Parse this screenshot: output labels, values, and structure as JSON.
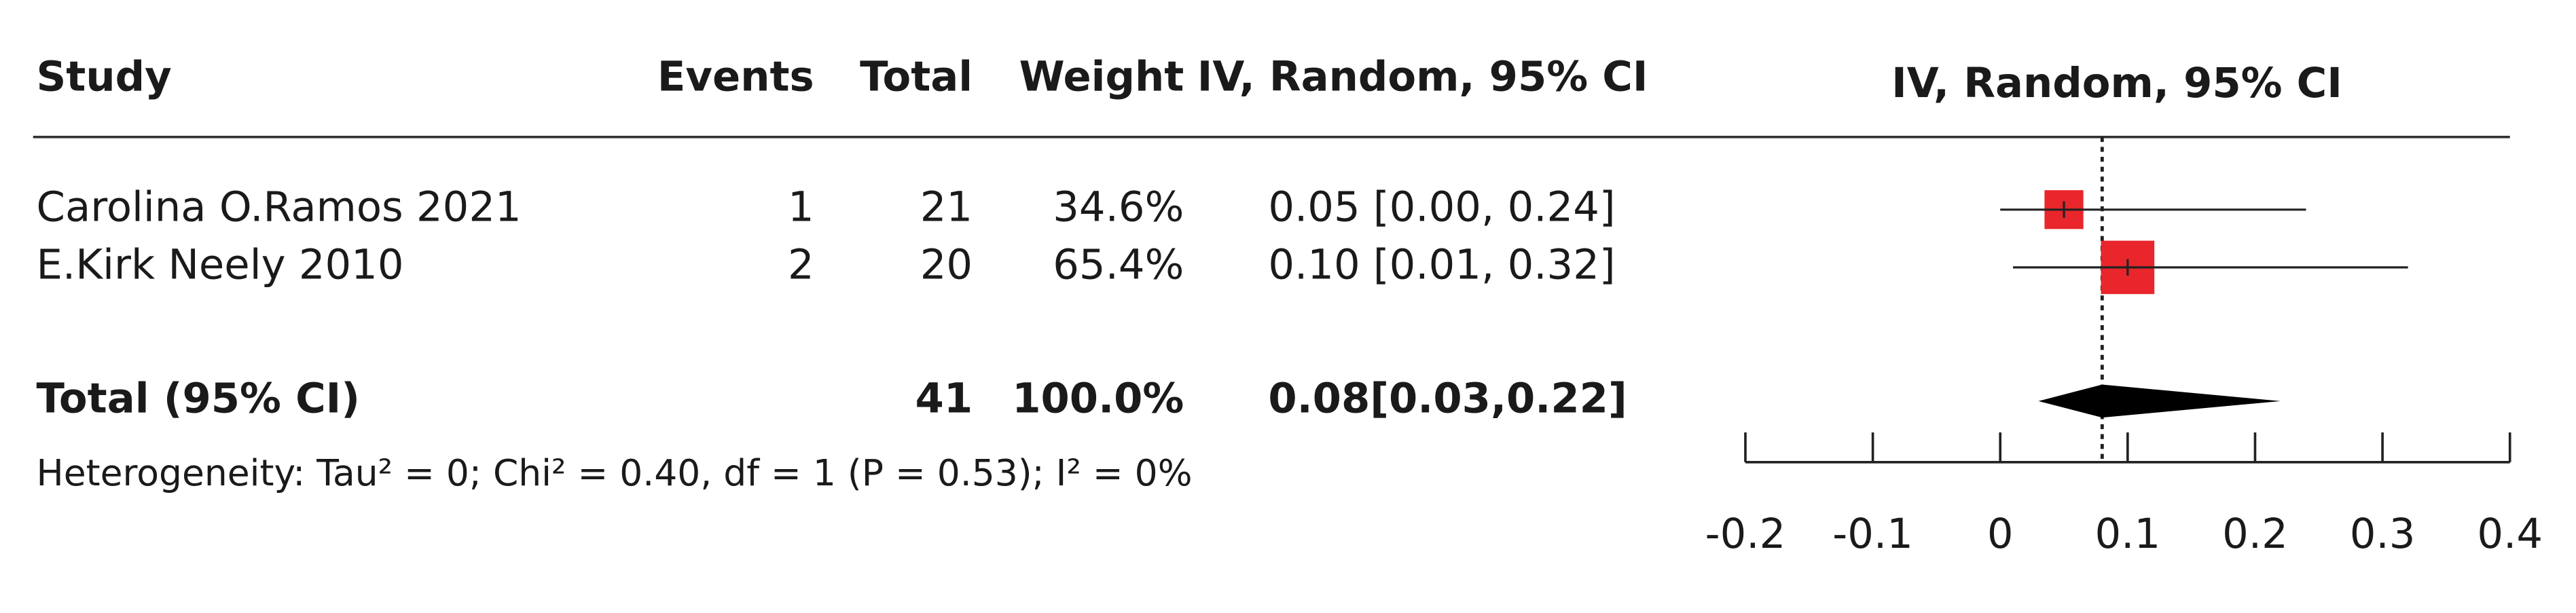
{
  "chart_data": {
    "type": "forest",
    "columns": [
      "Study",
      "Events",
      "Total",
      "Weight",
      "IV, Random, 95% CI"
    ],
    "plot_header": "IV, Random, 95% CI",
    "studies": [
      "Carolina O.Ramos 2021",
      "E.Kirk Neely 2010"
    ],
    "events": [
      1,
      2
    ],
    "totals": [
      21,
      20
    ],
    "weights": [
      34.6,
      65.4
    ],
    "weight_labels": [
      "34.6%",
      "65.4%"
    ],
    "estimates": [
      0.05,
      0.1
    ],
    "ci_low": [
      0.0,
      0.01
    ],
    "ci_high": [
      0.24,
      0.32
    ],
    "ci_labels": [
      "0.05 [0.00, 0.24]",
      "0.10 [0.01, 0.32]"
    ],
    "pooled": {
      "label": "Total (95% CI)",
      "total": 41,
      "weight": 100.0,
      "weight_label": "100.0%",
      "estimate": 0.08,
      "ci_low": 0.03,
      "ci_high": 0.22,
      "ci_label": "0.08[0.03,0.22]"
    },
    "heterogeneity": "Heterogeneity: Tau² = 0; Chi² = 0.40, df = 1 (P = 0.53);  I² = 0%",
    "xlim": [
      -0.2,
      0.4
    ],
    "xticks": [
      -0.2,
      -0.1,
      0,
      0.1,
      0.2,
      0.3,
      0.4
    ],
    "study_color": "#e8262b",
    "pooled_color": "#000000"
  }
}
